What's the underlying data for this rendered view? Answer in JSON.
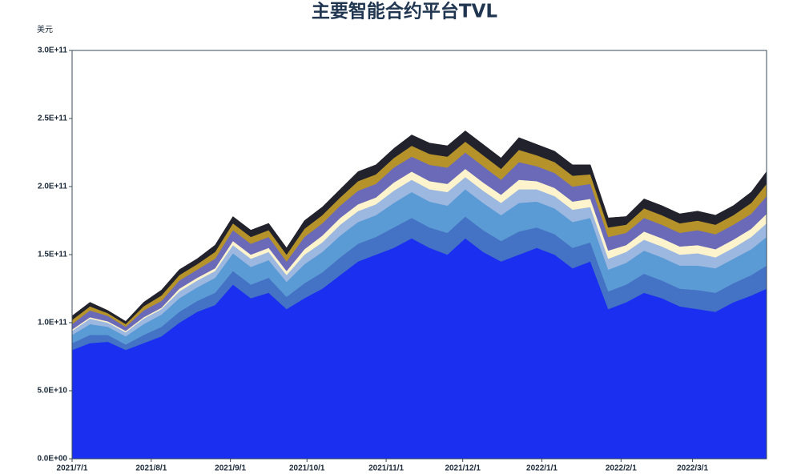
{
  "chart_data": {
    "type": "stacked_area",
    "title": "主要智能合约平台TVL",
    "y_label": "美元",
    "x": [
      "2021/7/1",
      "2021/7/8",
      "2021/7/15",
      "2021/7/22",
      "2021/7/29",
      "2021/8/5",
      "2021/8/12",
      "2021/8/19",
      "2021/8/26",
      "2021/9/2",
      "2021/9/9",
      "2021/9/16",
      "2021/9/23",
      "2021/9/30",
      "2021/10/7",
      "2021/10/14",
      "2021/10/21",
      "2021/10/28",
      "2021/11/4",
      "2021/11/11",
      "2021/11/18",
      "2021/11/25",
      "2021/12/2",
      "2021/12/9",
      "2021/12/16",
      "2021/12/23",
      "2021/12/30",
      "2022/1/6",
      "2022/1/13",
      "2022/1/20",
      "2022/1/27",
      "2022/2/3",
      "2022/2/10",
      "2022/2/17",
      "2022/2/24",
      "2022/3/3",
      "2022/3/10",
      "2022/3/17",
      "2022/3/24",
      "2022/3/30"
    ],
    "xlim": [
      "2021/7/1",
      "2022/3/30"
    ],
    "xticks": [
      "2021/7/1",
      "2021/8/1",
      "2021/9/1",
      "2021/10/1",
      "2021/11/1",
      "2021/12/1",
      "2022/1/1",
      "2022/2/1",
      "2022/3/1"
    ],
    "ylim": [
      0,
      300000000000.0
    ],
    "yticks": [
      {
        "value": 0,
        "label": "0.0E+00"
      },
      {
        "value": 50000000000.0,
        "label": "5.0E+10"
      },
      {
        "value": 100000000000.0,
        "label": "1.0E+11"
      },
      {
        "value": 150000000000.0,
        "label": "1.5E+11"
      },
      {
        "value": 200000000000.0,
        "label": "2.0E+11"
      },
      {
        "value": 250000000000.0,
        "label": "2.5E+11"
      },
      {
        "value": 300000000000.0,
        "label": "3.0E+11"
      }
    ],
    "series": [
      {
        "color": "#1a2ff0",
        "values": [
          80000000000.0,
          85000000000.0,
          86000000000.0,
          80000000000.0,
          85000000000.0,
          90000000000.0,
          100000000000.0,
          108000000000.0,
          113000000000.0,
          128000000000.0,
          118000000000.0,
          122000000000.0,
          110000000000.0,
          118000000000.0,
          125000000000.0,
          135000000000.0,
          145000000000.0,
          150000000000.0,
          155000000000.0,
          162000000000.0,
          155000000000.0,
          150000000000.0,
          162000000000.0,
          152000000000.0,
          145000000000.0,
          150000000000.0,
          155000000000.0,
          150000000000.0,
          140000000000.0,
          145000000000.0,
          110000000000.0,
          115000000000.0,
          122000000000.0,
          118000000000.0,
          112000000000.0,
          110000000000.0,
          108000000000.0,
          115000000000.0,
          120000000000.0,
          125000000000.0
        ]
      },
      {
        "color": "#4472c4",
        "values": [
          5000000000.0,
          6000000000.0,
          5000000000.0,
          4000000000.0,
          6000000000.0,
          7000000000.0,
          8000000000.0,
          8000000000.0,
          9000000000.0,
          10000000000.0,
          10000000000.0,
          11000000000.0,
          9000000000.0,
          11000000000.0,
          12000000000.0,
          13000000000.0,
          13000000000.0,
          13000000000.0,
          15000000000.0,
          15000000000.0,
          15000000000.0,
          16000000000.0,
          16000000000.0,
          16000000000.0,
          15000000000.0,
          17000000000.0,
          15000000000.0,
          15000000000.0,
          15000000000.0,
          14000000000.0,
          13000000000.0,
          13000000000.0,
          14000000000.0,
          13000000000.0,
          13000000000.0,
          14000000000.0,
          14000000000.0,
          14000000000.0,
          15000000000.0,
          17000000000.0
        ]
      },
      {
        "color": "#5b9bd5",
        "values": [
          6000000000.0,
          8000000000.0,
          6000000000.0,
          6000000000.0,
          8000000000.0,
          9000000000.0,
          10000000000.0,
          10000000000.0,
          11000000000.0,
          13000000000.0,
          13000000000.0,
          13000000000.0,
          11000000000.0,
          14000000000.0,
          15000000000.0,
          16000000000.0,
          16000000000.0,
          16000000000.0,
          18000000000.0,
          19000000000.0,
          19000000000.0,
          20000000000.0,
          20000000000.0,
          20000000000.0,
          19000000000.0,
          21000000000.0,
          19000000000.0,
          19000000000.0,
          19000000000.0,
          18000000000.0,
          16000000000.0,
          16000000000.0,
          17000000000.0,
          17000000000.0,
          17000000000.0,
          18000000000.0,
          18000000000.0,
          18000000000.0,
          19000000000.0,
          21000000000.0
        ]
      },
      {
        "color": "#9db8e0",
        "values": [
          3000000000.0,
          4000000000.0,
          3000000000.0,
          3000000000.0,
          4000000000.0,
          4000000000.0,
          5000000000.0,
          5000000000.0,
          5000000000.0,
          6000000000.0,
          6000000000.0,
          6000000000.0,
          5000000000.0,
          7000000000.0,
          7000000000.0,
          8000000000.0,
          8000000000.0,
          8000000000.0,
          9000000000.0,
          9000000000.0,
          9000000000.0,
          10000000000.0,
          9000000000.0,
          9000000000.0,
          9000000000.0,
          10000000000.0,
          9000000000.0,
          9000000000.0,
          9000000000.0,
          8000000000.0,
          8000000000.0,
          8000000000.0,
          8000000000.0,
          8000000000.0,
          8000000000.0,
          9000000000.0,
          8000000000.0,
          8000000000.0,
          9000000000.0,
          10000000000.0
        ]
      },
      {
        "color": "#fdf3cc",
        "values": [
          1000000000.0,
          1000000000.0,
          1000000000.0,
          1000000000.0,
          1000000000.0,
          1000000000.0,
          2000000000.0,
          2000000000.0,
          2000000000.0,
          3000000000.0,
          3000000000.0,
          3000000000.0,
          3000000000.0,
          4000000000.0,
          5000000000.0,
          5000000000.0,
          5000000000.0,
          5000000000.0,
          6000000000.0,
          6000000000.0,
          6000000000.0,
          6000000000.0,
          6000000000.0,
          6000000000.0,
          6000000000.0,
          7000000000.0,
          6000000000.0,
          6000000000.0,
          6000000000.0,
          6000000000.0,
          6000000000.0,
          5000000000.0,
          6000000000.0,
          6000000000.0,
          6000000000.0,
          6000000000.0,
          6000000000.0,
          6000000000.0,
          6000000000.0,
          7000000000.0
        ]
      },
      {
        "color": "#6a6ab8",
        "values": [
          4000000000.0,
          5000000000.0,
          4000000000.0,
          3000000000.0,
          5000000000.0,
          5000000000.0,
          6000000000.0,
          6000000000.0,
          7000000000.0,
          8000000000.0,
          8000000000.0,
          8000000000.0,
          7000000000.0,
          9000000000.0,
          9000000000.0,
          9000000000.0,
          10000000000.0,
          10000000000.0,
          11000000000.0,
          11000000000.0,
          12000000000.0,
          12000000000.0,
          12000000000.0,
          12000000000.0,
          11000000000.0,
          13000000000.0,
          11000000000.0,
          11000000000.0,
          11000000000.0,
          11000000000.0,
          10000000000.0,
          9000000000.0,
          10000000000.0,
          10000000000.0,
          10000000000.0,
          11000000000.0,
          11000000000.0,
          11000000000.0,
          11000000000.0,
          13000000000.0
        ]
      },
      {
        "color": "#b5922a",
        "values": [
          3000000000.0,
          3000000000.0,
          2000000000.0,
          2000000000.0,
          3000000000.0,
          4000000000.0,
          4000000000.0,
          4000000000.0,
          5000000000.0,
          5000000000.0,
          5000000000.0,
          5000000000.0,
          5000000000.0,
          6000000000.0,
          6000000000.0,
          6000000000.0,
          7000000000.0,
          7000000000.0,
          7000000000.0,
          8000000000.0,
          8000000000.0,
          8000000000.0,
          8000000000.0,
          8000000000.0,
          8000000000.0,
          9000000000.0,
          8000000000.0,
          8000000000.0,
          8000000000.0,
          7000000000.0,
          7000000000.0,
          6000000000.0,
          7000000000.0,
          7000000000.0,
          7000000000.0,
          7000000000.0,
          7000000000.0,
          7000000000.0,
          8000000000.0,
          9000000000.0
        ]
      },
      {
        "color": "#22222c",
        "values": [
          3000000000.0,
          3000000000.0,
          2000000000.0,
          2000000000.0,
          3000000000.0,
          4000000000.0,
          4000000000.0,
          4000000000.0,
          5000000000.0,
          5000000000.0,
          5000000000.0,
          5000000000.0,
          5000000000.0,
          6000000000.0,
          6000000000.0,
          6000000000.0,
          7000000000.0,
          7000000000.0,
          7000000000.0,
          8000000000.0,
          8000000000.0,
          8000000000.0,
          8000000000.0,
          8000000000.0,
          8000000000.0,
          9000000000.0,
          8000000000.0,
          8000000000.0,
          8000000000.0,
          7000000000.0,
          7000000000.0,
          6000000000.0,
          7000000000.0,
          7000000000.0,
          7000000000.0,
          7000000000.0,
          7000000000.0,
          7000000000.0,
          8000000000.0,
          9000000000.0
        ]
      }
    ]
  }
}
